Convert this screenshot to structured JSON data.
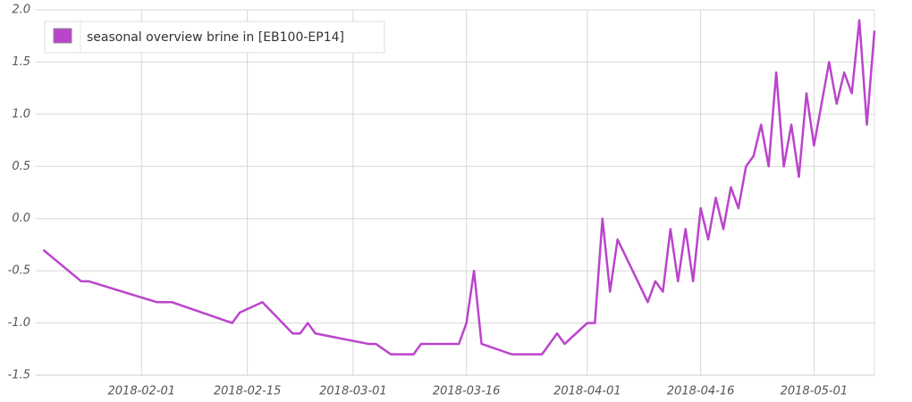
{
  "chart_data": {
    "type": "line",
    "x": [
      "2018-01-19",
      "2018-01-24",
      "2018-01-25",
      "2018-02-03",
      "2018-02-05",
      "2018-02-13",
      "2018-02-14",
      "2018-02-17",
      "2018-02-21",
      "2018-02-22",
      "2018-02-23",
      "2018-02-24",
      "2018-03-03",
      "2018-03-04",
      "2018-03-06",
      "2018-03-09",
      "2018-03-10",
      "2018-03-15",
      "2018-03-16",
      "2018-03-17",
      "2018-03-18",
      "2018-03-22",
      "2018-03-26",
      "2018-03-28",
      "2018-03-29",
      "2018-04-01",
      "2018-04-02",
      "2018-04-03",
      "2018-04-04",
      "2018-04-05",
      "2018-04-09",
      "2018-04-10",
      "2018-04-11",
      "2018-04-12",
      "2018-04-13",
      "2018-04-14",
      "2018-04-15",
      "2018-04-16",
      "2018-04-17",
      "2018-04-18",
      "2018-04-19",
      "2018-04-20",
      "2018-04-21",
      "2018-04-22",
      "2018-04-23",
      "2018-04-24",
      "2018-04-25",
      "2018-04-26",
      "2018-04-27",
      "2018-04-28",
      "2018-04-29",
      "2018-04-30",
      "2018-05-01",
      "2018-05-02",
      "2018-05-03",
      "2018-05-04",
      "2018-05-05",
      "2018-05-06",
      "2018-05-07",
      "2018-05-08",
      "2018-05-09"
    ],
    "series": [
      {
        "name": "seasonal overview brine in [EB100-EP14]",
        "color": "#bb44cc",
        "values": [
          -0.3,
          -0.6,
          -0.6,
          -0.8,
          -0.8,
          -1.0,
          -0.9,
          -0.8,
          -1.1,
          -1.1,
          -1.0,
          -1.1,
          -1.2,
          -1.2,
          -1.3,
          -1.3,
          -1.2,
          -1.2,
          -1.0,
          -0.5,
          -1.2,
          -1.3,
          -1.3,
          -1.1,
          -1.2,
          -1.0,
          -1.0,
          0.0,
          -0.7,
          -0.2,
          -0.8,
          -0.6,
          -0.7,
          -0.1,
          -0.6,
          -0.1,
          -0.6,
          0.1,
          -0.2,
          0.2,
          -0.1,
          0.3,
          0.1,
          0.5,
          0.6,
          0.9,
          0.5,
          1.4,
          0.5,
          0.9,
          0.4,
          1.2,
          0.7,
          1.1,
          1.5,
          1.1,
          1.4,
          1.2,
          1.9,
          0.9,
          1.8
        ]
      }
    ],
    "xlim": [
      "2018-01-18",
      "2018-05-09"
    ],
    "xticks": [
      "2018-02-01",
      "2018-02-15",
      "2018-03-01",
      "2018-03-16",
      "2018-04-01",
      "2018-04-16",
      "2018-05-01"
    ],
    "ylim": [
      -1.5,
      2.0
    ],
    "yticks": [
      {
        "value": -1.5,
        "label": "-1.5"
      },
      {
        "value": -1.0,
        "label": "-1.0"
      },
      {
        "value": -0.5,
        "label": "-0.5"
      },
      {
        "value": 0.0,
        "label": "0.0"
      },
      {
        "value": 0.5,
        "label": "0.5"
      },
      {
        "value": 1.0,
        "label": "1.0"
      },
      {
        "value": 1.5,
        "label": "1.5"
      },
      {
        "value": 2.0,
        "label": "2.0"
      }
    ],
    "grid": true,
    "legend": "top-left"
  }
}
